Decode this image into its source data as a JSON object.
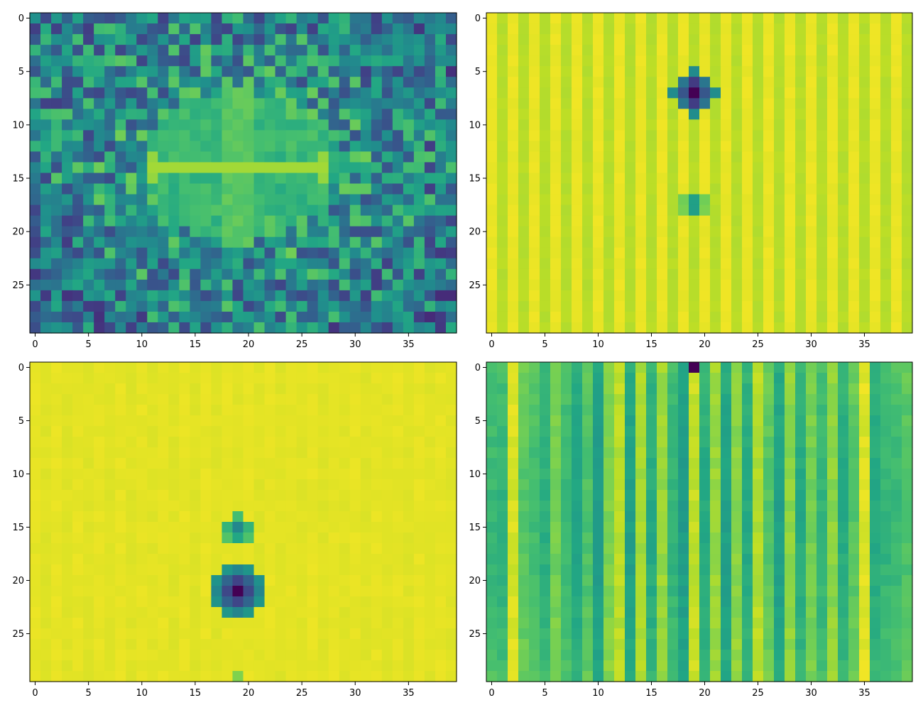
{
  "chart_data": [
    {
      "type": "heatmap",
      "title": "",
      "xlabel": "",
      "ylabel": "",
      "colormap": "viridis",
      "rows": 30,
      "cols": 40,
      "xlim": [
        -0.5,
        39.5
      ],
      "ylim": [
        29.5,
        -0.5
      ],
      "xticks": [
        0,
        5,
        10,
        15,
        20,
        25,
        30,
        35
      ],
      "yticks": [
        0,
        5,
        10,
        15,
        20,
        25
      ],
      "xtick_labels": [
        "0",
        "5",
        "10",
        "15",
        "20",
        "25",
        "30",
        "35"
      ],
      "ytick_labels": [
        "0",
        "5",
        "10",
        "15",
        "20",
        "25"
      ],
      "description": "Noisy 2D FFT magnitude pattern; brighter cross-shaped band centered near row 14, columns 11-27, with a bright vertical stripe around column 19",
      "features": {
        "kind": "noisy_cross",
        "center_row": 14,
        "center_col": 19,
        "band_row": 14,
        "band_col_range": [
          11,
          27
        ],
        "v_band_col_range": [
          18,
          20
        ],
        "v_band_row_range": [
          7,
          21
        ]
      }
    },
    {
      "type": "heatmap",
      "title": "",
      "xlabel": "",
      "ylabel": "",
      "colormap": "viridis",
      "rows": 30,
      "cols": 40,
      "xlim": [
        -0.5,
        39.5
      ],
      "ylim": [
        29.5,
        -0.5
      ],
      "xticks": [
        0,
        5,
        10,
        15,
        20,
        25,
        30,
        35
      ],
      "yticks": [
        0,
        5,
        10,
        15,
        20,
        25
      ],
      "xtick_labels": [
        "0",
        "5",
        "10",
        "15",
        "20",
        "25",
        "30",
        "35"
      ],
      "ytick_labels": [
        "0",
        "5",
        "10",
        "15",
        "20",
        "25"
      ],
      "description": "Mostly high (yellow) field with faint vertical stripes, a dark blob centered at row 7 col 19 and a smaller blob at row 18 col 19",
      "features": {
        "kind": "blobs",
        "base": 0.93,
        "stripe_amp": 0.04,
        "blobs": [
          {
            "row": 7,
            "col": 19,
            "radius": 2.2,
            "depth": 1.0
          },
          {
            "row": 17.5,
            "col": 19,
            "radius": 1.2,
            "depth": 0.45
          }
        ]
      }
    },
    {
      "type": "heatmap",
      "title": "",
      "xlabel": "",
      "ylabel": "",
      "colormap": "viridis",
      "rows": 30,
      "cols": 40,
      "xlim": [
        -0.5,
        39.5
      ],
      "ylim": [
        29.5,
        -0.5
      ],
      "xticks": [
        0,
        5,
        10,
        15,
        20,
        25,
        30,
        35
      ],
      "yticks": [
        0,
        5,
        10,
        15,
        20,
        25
      ],
      "xtick_labels": [
        "0",
        "5",
        "10",
        "15",
        "20",
        "25",
        "30",
        "35"
      ],
      "ytick_labels": [
        "0",
        "5",
        "10",
        "15",
        "20",
        "25"
      ],
      "description": "Uniform yellow field with a dark blob at row 21 col 19, a smaller blob at row 15 col 19 and a faint spot at row 29 col 19",
      "features": {
        "kind": "blobs",
        "base": 0.96,
        "stripe_amp": 0.005,
        "blobs": [
          {
            "row": 21,
            "col": 19,
            "radius": 2.6,
            "depth": 1.0
          },
          {
            "row": 15.2,
            "col": 19,
            "radius": 1.5,
            "depth": 0.55
          },
          {
            "row": 29,
            "col": 19,
            "radius": 0.9,
            "depth": 0.15
          }
        ]
      }
    },
    {
      "type": "heatmap",
      "title": "",
      "xlabel": "",
      "ylabel": "",
      "colormap": "viridis",
      "rows": 30,
      "cols": 40,
      "xlim": [
        -0.5,
        39.5
      ],
      "ylim": [
        29.5,
        -0.5
      ],
      "xticks": [
        0,
        5,
        10,
        15,
        20,
        25,
        30,
        35
      ],
      "yticks": [
        0,
        5,
        10,
        15,
        20,
        25
      ],
      "xtick_labels": [
        "0",
        "5",
        "10",
        "15",
        "20",
        "25",
        "30",
        "35"
      ],
      "ytick_labels": [
        "0",
        "5",
        "10",
        "15",
        "20",
        "25"
      ],
      "description": "Alternating green and yellow vertical stripes across all columns; single dark cell at row 0 col 19",
      "features": {
        "kind": "stripes",
        "column_levels": [
          0.72,
          0.7,
          0.95,
          0.78,
          0.74,
          0.68,
          0.8,
          0.72,
          0.64,
          0.76,
          0.6,
          0.82,
          0.9,
          0.62,
          0.88,
          0.66,
          0.86,
          0.7,
          0.6,
          0.92,
          0.66,
          0.86,
          0.62,
          0.84,
          0.66,
          0.9,
          0.78,
          0.62,
          0.84,
          0.66,
          0.8,
          0.7,
          0.84,
          0.66,
          0.78,
          0.96,
          0.66,
          0.7,
          0.72,
          0.76
        ],
        "dark_cell": {
          "row": 0,
          "col": 19,
          "value": 0.0
        }
      }
    }
  ]
}
